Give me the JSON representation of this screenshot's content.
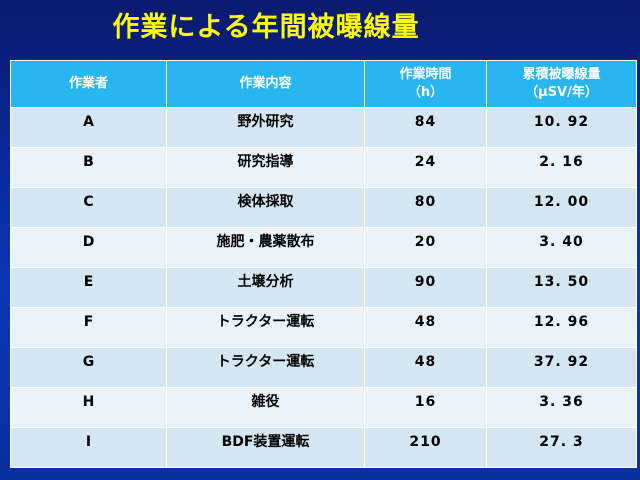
{
  "title": "作業による年間被曝線量",
  "table": {
    "headers": [
      {
        "line1": "作業者",
        "line2": ""
      },
      {
        "line1": "作業内容",
        "line2": ""
      },
      {
        "line1": "作業時間",
        "line2": "（h）"
      },
      {
        "line1": "累積被曝線量",
        "line2": "（μSV/年）"
      }
    ],
    "rows": [
      {
        "worker": "A",
        "task": "野外研究",
        "hours": "84",
        "dose": "10. 92"
      },
      {
        "worker": "B",
        "task": "研究指導",
        "hours": "24",
        "dose": "2. 16"
      },
      {
        "worker": "C",
        "task": "検体採取",
        "hours": "80",
        "dose": "12. 00"
      },
      {
        "worker": "D",
        "task": "施肥・農薬散布",
        "hours": "20",
        "dose": "3. 40"
      },
      {
        "worker": "E",
        "task": "土壌分析",
        "hours": "90",
        "dose": "13. 50"
      },
      {
        "worker": "F",
        "task": "トラクター運転",
        "hours": "48",
        "dose": "12. 96"
      },
      {
        "worker": "G",
        "task": "トラクター運転",
        "hours": "48",
        "dose": "37. 92"
      },
      {
        "worker": "H",
        "task": "雑役",
        "hours": "16",
        "dose": "3. 36"
      },
      {
        "worker": "I",
        "task": "BDF装置運転",
        "hours": "210",
        "dose": "27. 3"
      }
    ]
  },
  "colors": {
    "background": "#0b2a9a",
    "title": "#ffff00",
    "header_bg": "#29b6f0",
    "row_odd": "#d3e6f2",
    "row_even": "#e9f3f9"
  }
}
